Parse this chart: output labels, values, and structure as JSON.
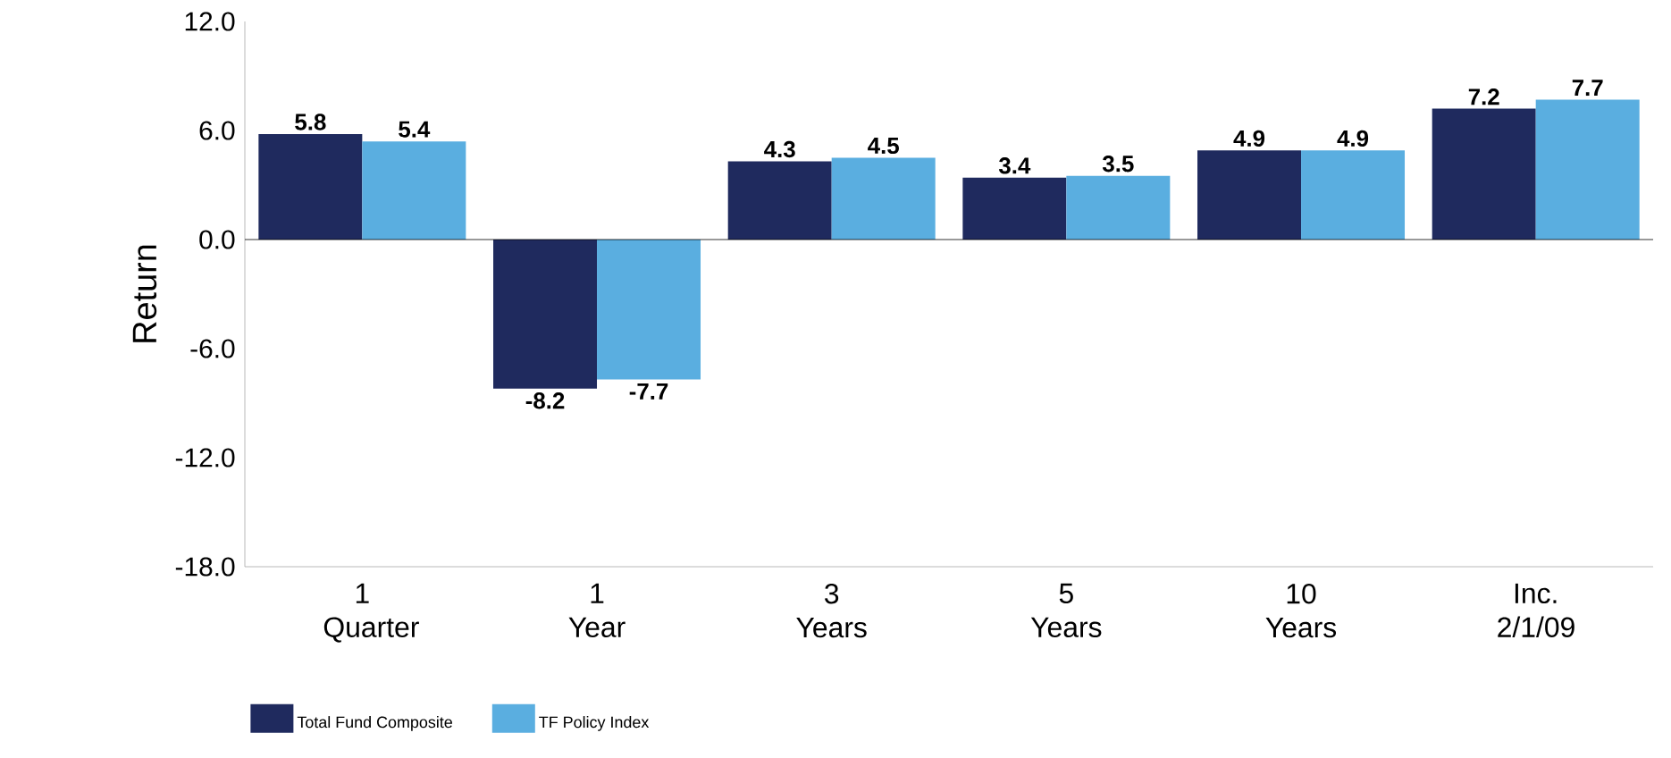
{
  "chart_data": {
    "type": "bar",
    "ylabel": "Return",
    "categories": [
      "1 Quarter",
      "1 Year",
      "3 Years",
      "5 Years",
      "10 Years",
      "Inc. 2/1/09"
    ],
    "series": [
      {
        "name": "Total Fund Composite",
        "color": "#1f2a5e",
        "values": [
          5.8,
          -8.2,
          4.3,
          3.4,
          4.9,
          7.2
        ]
      },
      {
        "name": "TF Policy Index",
        "color": "#5aaee0",
        "values": [
          5.4,
          -7.7,
          4.5,
          3.5,
          4.9,
          7.7
        ]
      }
    ],
    "ylim": [
      -18,
      12
    ],
    "yticks": [
      {
        "value": -18,
        "label": "-18.0"
      },
      {
        "value": -12,
        "label": "-12.0"
      },
      {
        "value": -6,
        "label": "-6.0"
      },
      {
        "value": 0,
        "label": "0.0"
      },
      {
        "value": 6,
        "label": "6.0"
      },
      {
        "value": 12,
        "label": "12.0"
      }
    ],
    "ref_lines": [
      {
        "axis": "y",
        "value": 0
      }
    ],
    "data_labels": true,
    "grid": false,
    "legend": "bottom left"
  }
}
